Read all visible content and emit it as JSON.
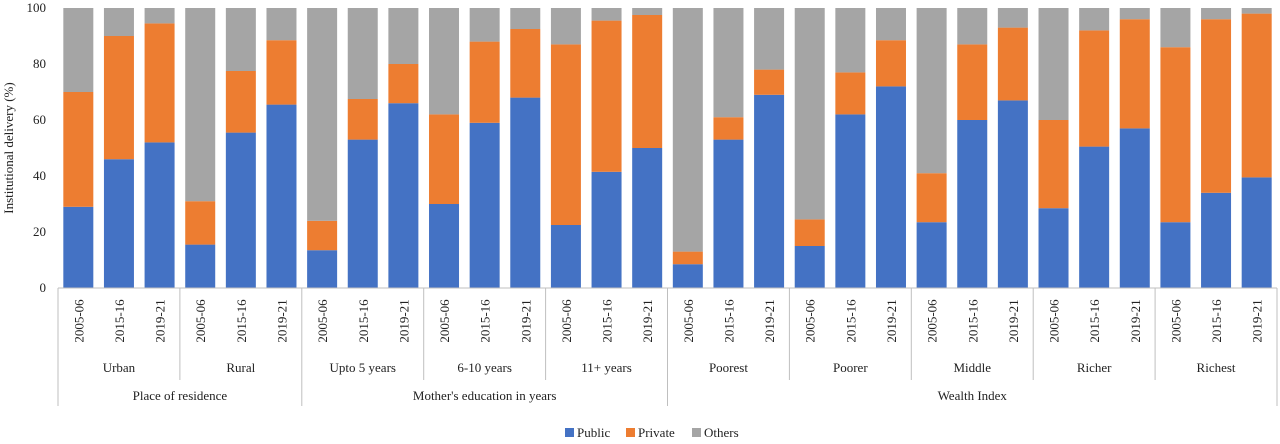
{
  "chart_data": {
    "type": "bar",
    "stacked": true,
    "ylabel": "Institutional delivery (%)",
    "ylim": [
      0,
      100
    ],
    "yticks": [
      "0",
      "20",
      "40",
      "60",
      "80",
      "100"
    ],
    "grid": false,
    "legend_position": "bottom",
    "categories": [
      "2005-06",
      "2015-16",
      "2019-21",
      "2005-06",
      "2015-16",
      "2019-21",
      "2005-06",
      "2015-16",
      "2019-21",
      "2005-06",
      "2015-16",
      "2019-21",
      "2005-06",
      "2015-16",
      "2019-21",
      "2005-06",
      "2015-16",
      "2019-21",
      "2005-06",
      "2015-16",
      "2019-21",
      "2005-06",
      "2015-16",
      "2019-21",
      "2005-06",
      "2015-16",
      "2019-21",
      "2005-06",
      "2015-16",
      "2019-21"
    ],
    "groups": [
      "Urban",
      "Rural",
      "Upto 5 years",
      "6-10 years",
      "11+ years",
      "Poorest",
      "Poorer",
      "Middle",
      "Richer",
      "Richest"
    ],
    "supergroups": [
      {
        "label": "Place of residence",
        "groups": 2
      },
      {
        "label": "Mother's education in years",
        "groups": 3
      },
      {
        "label": "Wealth Index",
        "groups": 5
      }
    ],
    "series": [
      {
        "name": "Public",
        "color": "#4472C4",
        "values": [
          29,
          46,
          52,
          15.5,
          55.5,
          65.5,
          13.5,
          53,
          66,
          30,
          59,
          68,
          22.5,
          41.5,
          50,
          8.5,
          53,
          69,
          15,
          62,
          72,
          23.5,
          60,
          67,
          28.5,
          50.5,
          57,
          23.5,
          34,
          39.5
        ]
      },
      {
        "name": "Private",
        "color": "#ED7D31",
        "values": [
          41,
          44,
          42.5,
          15.5,
          22,
          23,
          10.5,
          14.5,
          14,
          32,
          29,
          24.5,
          64.5,
          54,
          47.5,
          4.5,
          8,
          9,
          9.5,
          15,
          16.5,
          17.5,
          27,
          26,
          31.5,
          41.5,
          39,
          62.5,
          62,
          58.5
        ]
      },
      {
        "name": "Others",
        "color": "#A5A5A5",
        "values": [
          30,
          10,
          5.5,
          69,
          22.5,
          11.5,
          76,
          32.5,
          20,
          38,
          12,
          7.5,
          13,
          4.5,
          2.5,
          87,
          39,
          22,
          75.5,
          23,
          11.5,
          59,
          13,
          7,
          40,
          8,
          4,
          14,
          4,
          2
        ]
      }
    ]
  }
}
